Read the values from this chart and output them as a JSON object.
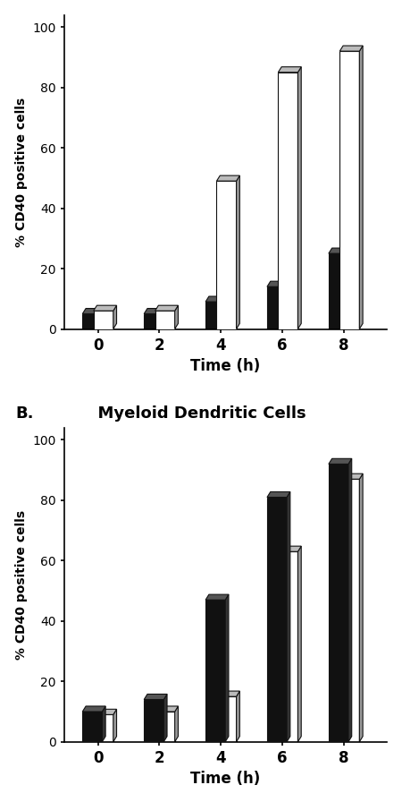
{
  "panel_A": {
    "black_values": [
      5,
      5,
      9,
      14,
      25
    ],
    "white_values": [
      6,
      6,
      49,
      85,
      92
    ],
    "time_points": [
      0,
      2,
      4,
      6,
      8
    ],
    "ylabel": "% CD40 positive cells",
    "xlabel": "Time (h)",
    "ylim": [
      0,
      100
    ],
    "yticks": [
      0,
      20,
      40,
      60,
      80,
      100
    ]
  },
  "panel_B": {
    "title": "Myeloid Dendritic Cells",
    "title_prefix": "B.",
    "black_values": [
      10,
      14,
      47,
      81,
      92
    ],
    "white_values": [
      9,
      10,
      15,
      63,
      87
    ],
    "time_points": [
      0,
      2,
      4,
      6,
      8
    ],
    "ylabel": "% CD40 positive cells",
    "xlabel": "Time (h)",
    "ylim": [
      0,
      100
    ],
    "yticks": [
      0,
      20,
      40,
      60,
      80,
      100
    ]
  },
  "bar_width": 0.32,
  "black_color": "#111111",
  "white_color": "#ffffff",
  "edge_color": "#111111",
  "top_color_white": "#bbbbbb",
  "top_color_black": "#555555",
  "side_color_white": "#999999",
  "side_color_black": "#333333",
  "background_color": "#ffffff",
  "figure_width": 4.5,
  "figure_height": 8.96,
  "dpi": 100
}
